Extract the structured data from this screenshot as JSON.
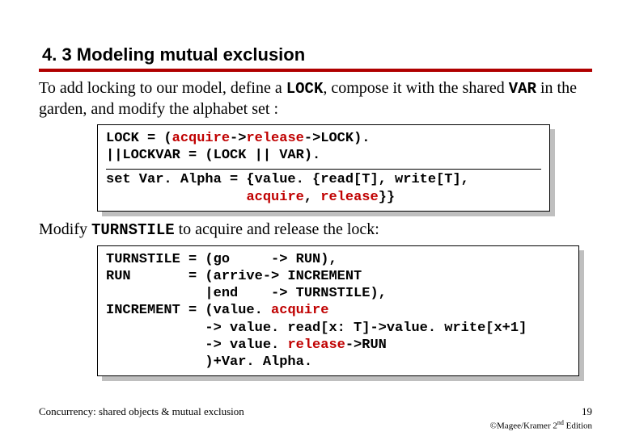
{
  "title": "4. 3  Modeling mutual exclusion",
  "para1_before": "To add locking to our model, define a ",
  "para1_mono1": "LOCK",
  "para1_mid": ",  compose it with the shared ",
  "para1_mono2": "VAR",
  "para1_after": "  in the garden, and modify the alphabet set  :",
  "code1": {
    "l1a": "LOCK = (",
    "l1b": "acquire",
    "l1c": "->",
    "l1d": "release",
    "l1e": "->LOCK).",
    "l2": "||LOCKVAR = (LOCK || VAR).",
    "l3": "",
    "l4a": "set Var. Alpha = {value. {read[T], write[T],",
    "l5a": "                 ",
    "l5b": "acquire",
    "l5c": ", ",
    "l5d": "release",
    "l5e": "}}"
  },
  "para2_before": "Modify ",
  "para2_mono": "TURNSTILE",
  "para2_after": " to acquire and release the lock:",
  "code2": {
    "l1": "TURNSTILE = (go     -> RUN),",
    "l2": "RUN       = (arrive-> INCREMENT",
    "l3": "            |end    -> TURNSTILE),",
    "l4a": "INCREMENT = (value. ",
    "l4b": "acquire",
    "l5": "            -> value. read[x: T]->value. write[x+1]",
    "l6a": "            -> value. ",
    "l6b": "release",
    "l6c": "->RUN",
    "l7": "            )+Var. Alpha."
  },
  "footer_left": "Concurrency: shared objects & mutual exclusion",
  "footer_page": "19",
  "footer_credit_a": "©Magee/Kramer ",
  "footer_credit_b": "2",
  "footer_credit_c": "nd",
  "footer_credit_d": " Edition",
  "colors": {
    "rule": "#b00000",
    "keyword": "#c00000",
    "text": "#000000",
    "shadow": "#bfbfbf",
    "bg": "#ffffff"
  }
}
